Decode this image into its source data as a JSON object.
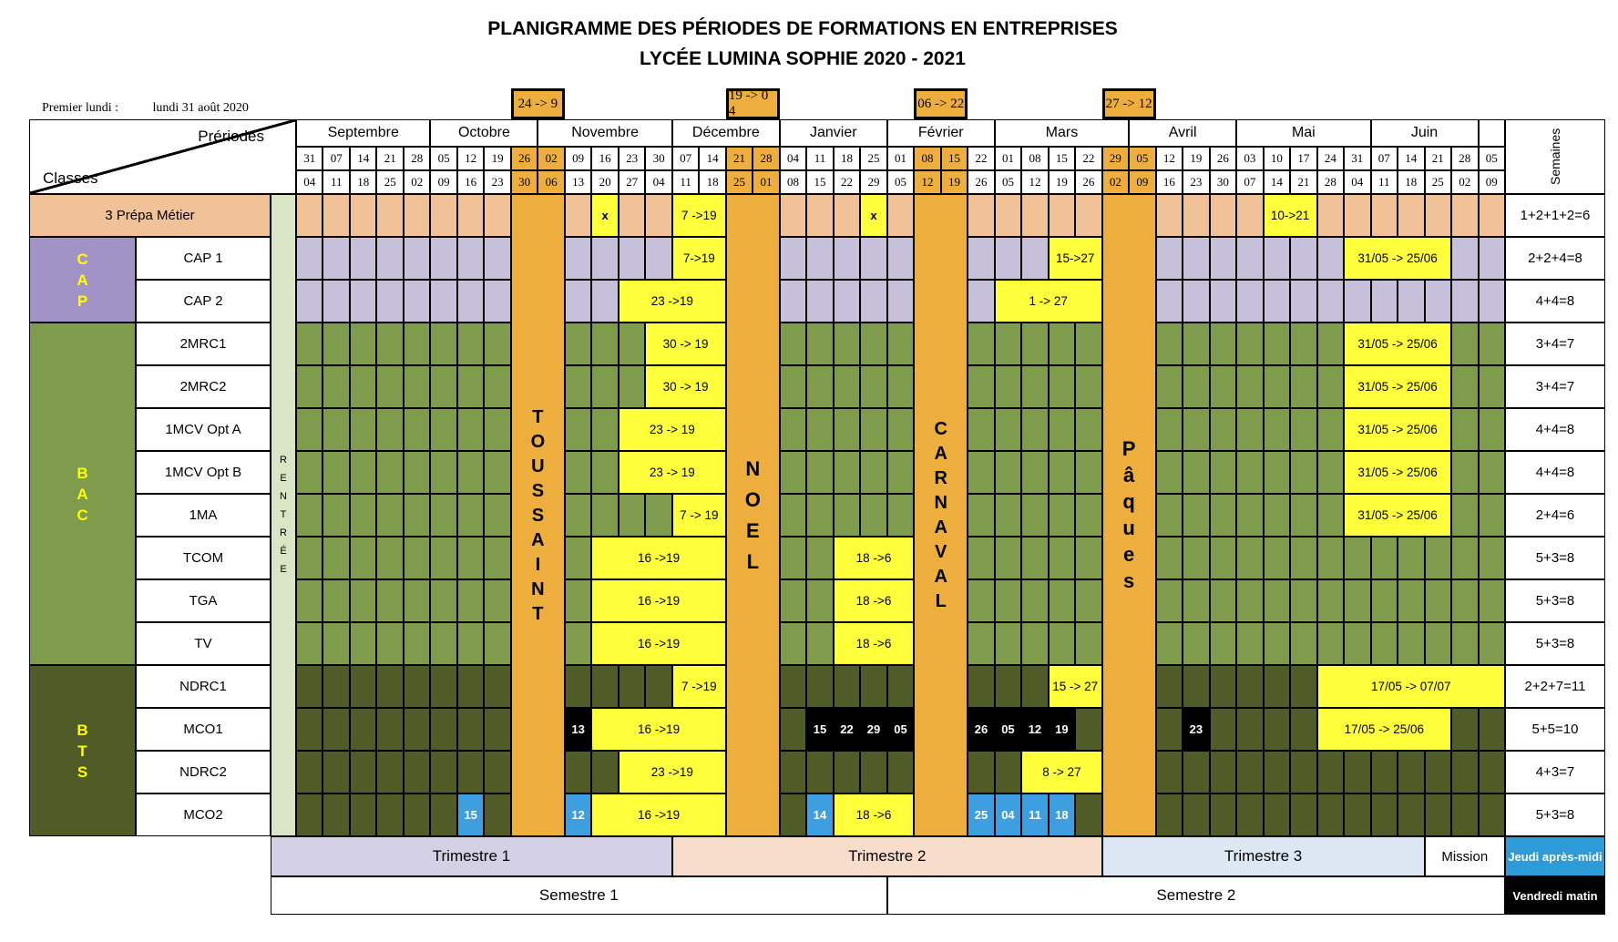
{
  "title_line1": "PLANIGRAMME DES PÉRIODES DE FORMATIONS EN ENTREPRISES",
  "title_line2": "LYCÉE LUMINA SOPHIE 2020 - 2021",
  "premier_lundi_label": "Premier lundi :",
  "premier_lundi_value": "lundi 31 août 2020",
  "corner": {
    "top": "Prériodes",
    "bottom": "Classes"
  },
  "semaines_header": "Semaines",
  "rentree_letters": [
    "R",
    "E",
    "N",
    "T",
    "R",
    "É",
    "E"
  ],
  "colors": {
    "orange": "#EEAE3E",
    "salmon": "#F1C298",
    "cap_cell": "#C6C0DB",
    "cap_group": "#A193C6",
    "bac": "#7E9C4B",
    "bts": "#505C28",
    "rentree": "#D9E5C5",
    "yellow": "#FFFF3C",
    "thursday_blue": "#3E9FE0",
    "legend_blue": "#2D9BD7",
    "trimestre1": "#D4D0E5",
    "trimestre2": "#F8DECA",
    "trimestre3": "#DCE7F3",
    "group_letter": "#FFFF00"
  },
  "months": [
    {
      "name": "Septembre",
      "span": 5
    },
    {
      "name": "Octobre",
      "span": 4
    },
    {
      "name": "Novembre",
      "span": 5
    },
    {
      "name": "Décembre",
      "span": 4
    },
    {
      "name": "Janvier",
      "span": 4
    },
    {
      "name": "Février",
      "span": 4
    },
    {
      "name": "Mars",
      "span": 5
    },
    {
      "name": "Avril",
      "span": 4
    },
    {
      "name": "Mai",
      "span": 5
    },
    {
      "name": "Juin",
      "span": 4
    },
    {
      "name": "",
      "span": 1
    }
  ],
  "weeks": [
    {
      "t": "31",
      "b": "04"
    },
    {
      "t": "07",
      "b": "11"
    },
    {
      "t": "14",
      "b": "18"
    },
    {
      "t": "21",
      "b": "25"
    },
    {
      "t": "28",
      "b": "02"
    },
    {
      "t": "05",
      "b": "09"
    },
    {
      "t": "12",
      "b": "16"
    },
    {
      "t": "19",
      "b": "23"
    },
    {
      "t": "26",
      "b": "30",
      "vac": 1
    },
    {
      "t": "02",
      "b": "06",
      "vac": 1
    },
    {
      "t": "09",
      "b": "13"
    },
    {
      "t": "16",
      "b": "20"
    },
    {
      "t": "23",
      "b": "27"
    },
    {
      "t": "30",
      "b": "04"
    },
    {
      "t": "07",
      "b": "11"
    },
    {
      "t": "14",
      "b": "18"
    },
    {
      "t": "21",
      "b": "25",
      "vac": 1
    },
    {
      "t": "28",
      "b": "01",
      "vac": 1
    },
    {
      "t": "04",
      "b": "08"
    },
    {
      "t": "11",
      "b": "15"
    },
    {
      "t": "18",
      "b": "22"
    },
    {
      "t": "25",
      "b": "29"
    },
    {
      "t": "01",
      "b": "05"
    },
    {
      "t": "08",
      "b": "12",
      "vac": 1
    },
    {
      "t": "15",
      "b": "19",
      "vac": 1
    },
    {
      "t": "22",
      "b": "26"
    },
    {
      "t": "01",
      "b": "05"
    },
    {
      "t": "08",
      "b": "12"
    },
    {
      "t": "15",
      "b": "19"
    },
    {
      "t": "22",
      "b": "26"
    },
    {
      "t": "29",
      "b": "02",
      "vac": 1
    },
    {
      "t": "05",
      "b": "09",
      "vac": 1
    },
    {
      "t": "12",
      "b": "16"
    },
    {
      "t": "19",
      "b": "23"
    },
    {
      "t": "26",
      "b": "30"
    },
    {
      "t": "03",
      "b": "07"
    },
    {
      "t": "10",
      "b": "14"
    },
    {
      "t": "17",
      "b": "21"
    },
    {
      "t": "24",
      "b": "28"
    },
    {
      "t": "31",
      "b": "04"
    },
    {
      "t": "07",
      "b": "11"
    },
    {
      "t": "14",
      "b": "18"
    },
    {
      "t": "21",
      "b": "25"
    },
    {
      "t": "28",
      "b": "02"
    },
    {
      "t": "05",
      "b": "09"
    }
  ],
  "vacations": [
    {
      "id": "toussaint",
      "badge": "24 -> 9",
      "letters": [
        "T",
        "O",
        "U",
        "S",
        "S",
        "A",
        "I",
        "N",
        "T"
      ],
      "s": 8,
      "n": 2,
      "fs": 20,
      "gap": 7
    },
    {
      "id": "noel",
      "badge": "19 -> 0 4",
      "letters": [
        "N",
        "O",
        "E",
        "L"
      ],
      "s": 16,
      "n": 2,
      "fs": 22,
      "gap": 12
    },
    {
      "id": "carnaval",
      "badge": "06 -> 22",
      "letters": [
        "C",
        "A",
        "R",
        "N",
        "A",
        "V",
        "A",
        "L"
      ],
      "s": 23,
      "n": 2,
      "fs": 20,
      "gap": 7
    },
    {
      "id": "paques",
      "badge": "27 -> 12",
      "letters": [
        "P",
        "â",
        "q",
        "u",
        "e",
        "s"
      ],
      "s": 30,
      "n": 2,
      "fs": 22,
      "gap": 7
    }
  ],
  "groups": [
    {
      "id": "cap",
      "letters": [
        "C",
        "A",
        "P"
      ],
      "row": 1,
      "n": 2
    },
    {
      "id": "bac",
      "letters": [
        "B",
        "A",
        "C"
      ],
      "row": 3,
      "n": 8
    },
    {
      "id": "bts",
      "letters": [
        "B",
        "T",
        "S"
      ],
      "row": 11,
      "n": 4
    }
  ],
  "rows": [
    {
      "name": "3 Prépa Métier",
      "type": "prepa",
      "semaines": "1+2+1+2=6",
      "blocks": [
        {
          "k": "x",
          "label": "x",
          "s": 11
        },
        {
          "k": "r",
          "label": "7 ->19",
          "s": 14,
          "n": 2
        },
        {
          "k": "x",
          "label": "x",
          "s": 21
        },
        {
          "k": "r",
          "label": "10->21",
          "s": 36,
          "n": 2
        }
      ]
    },
    {
      "name": "CAP 1",
      "type": "cap",
      "semaines": "2+2+4=8",
      "blocks": [
        {
          "k": "r",
          "label": "7->19",
          "s": 14,
          "n": 2
        },
        {
          "k": "r",
          "label": "15->27",
          "s": 28,
          "n": 2
        },
        {
          "k": "r",
          "label": "31/05 -> 25/06",
          "s": 39,
          "n": 4
        }
      ]
    },
    {
      "name": "CAP 2",
      "type": "cap",
      "semaines": "4+4=8",
      "blocks": [
        {
          "k": "r",
          "label": "23 ->19",
          "s": 12,
          "n": 4
        },
        {
          "k": "r",
          "label": "1 -> 27",
          "s": 26,
          "n": 4
        }
      ]
    },
    {
      "name": "2MRC1",
      "type": "bac",
      "semaines": "3+4=7",
      "blocks": [
        {
          "k": "r",
          "label": "30 -> 19",
          "s": 13,
          "n": 3
        },
        {
          "k": "r",
          "label": "31/05 -> 25/06",
          "s": 39,
          "n": 4
        }
      ]
    },
    {
      "name": "2MRC2",
      "type": "bac",
      "semaines": "3+4=7",
      "blocks": [
        {
          "k": "r",
          "label": "30 -> 19",
          "s": 13,
          "n": 3
        },
        {
          "k": "r",
          "label": "31/05 -> 25/06",
          "s": 39,
          "n": 4
        }
      ]
    },
    {
      "name": "1MCV Opt A",
      "type": "bac",
      "semaines": "4+4=8",
      "blocks": [
        {
          "k": "r",
          "label": "23 -> 19",
          "s": 12,
          "n": 4
        },
        {
          "k": "r",
          "label": "31/05 -> 25/06",
          "s": 39,
          "n": 4
        }
      ]
    },
    {
      "name": "1MCV Opt B",
      "type": "bac",
      "semaines": "4+4=8",
      "blocks": [
        {
          "k": "r",
          "label": "23 -> 19",
          "s": 12,
          "n": 4
        },
        {
          "k": "r",
          "label": "31/05 -> 25/06",
          "s": 39,
          "n": 4
        }
      ]
    },
    {
      "name": "1MA",
      "type": "bac",
      "semaines": "2+4=6",
      "blocks": [
        {
          "k": "r",
          "label": "7 -> 19",
          "s": 14,
          "n": 2
        },
        {
          "k": "r",
          "label": "31/05 -> 25/06",
          "s": 39,
          "n": 4
        }
      ]
    },
    {
      "name": "TCOM",
      "type": "bac",
      "semaines": "5+3=8",
      "blocks": [
        {
          "k": "r",
          "label": "16 ->19",
          "s": 11,
          "n": 5
        },
        {
          "k": "r",
          "label": "18 ->6",
          "s": 20,
          "n": 3
        }
      ]
    },
    {
      "name": "TGA",
      "type": "bac",
      "semaines": "5+3=8",
      "blocks": [
        {
          "k": "r",
          "label": "16 ->19",
          "s": 11,
          "n": 5
        },
        {
          "k": "r",
          "label": "18 ->6",
          "s": 20,
          "n": 3
        }
      ]
    },
    {
      "name": "TV",
      "type": "bac",
      "semaines": "5+3=8",
      "blocks": [
        {
          "k": "r",
          "label": "16 ->19",
          "s": 11,
          "n": 5
        },
        {
          "k": "r",
          "label": "18 ->6",
          "s": 20,
          "n": 3
        }
      ]
    },
    {
      "name": "NDRC1",
      "type": "bts",
      "semaines": "2+2+7=11",
      "blocks": [
        {
          "k": "r",
          "label": "7 ->19",
          "s": 14,
          "n": 2
        },
        {
          "k": "r",
          "label": "15 -> 27",
          "s": 28,
          "n": 2
        },
        {
          "k": "r",
          "label": "17/05 -> 07/07",
          "s": 38,
          "n": 7
        }
      ]
    },
    {
      "name": "MCO1",
      "type": "bts",
      "semaines": "5+5=10",
      "blocks": [
        {
          "k": "f",
          "label": "13",
          "s": 10
        },
        {
          "k": "r",
          "label": "16 ->19",
          "s": 11,
          "n": 5
        },
        {
          "k": "f",
          "label": "15",
          "s": 19
        },
        {
          "k": "f",
          "label": "22",
          "s": 20
        },
        {
          "k": "f",
          "label": "29",
          "s": 21
        },
        {
          "k": "f",
          "label": "05",
          "s": 22
        },
        {
          "k": "f",
          "label": "26",
          "s": 25
        },
        {
          "k": "f",
          "label": "05",
          "s": 26
        },
        {
          "k": "f",
          "label": "12",
          "s": 27
        },
        {
          "k": "f",
          "label": "19",
          "s": 28
        },
        {
          "k": "f",
          "label": "23",
          "s": 33
        },
        {
          "k": "r",
          "label": "17/05 -> 25/06",
          "s": 38,
          "n": 5
        }
      ]
    },
    {
      "name": "NDRC2",
      "type": "bts",
      "semaines": "4+3=7",
      "blocks": [
        {
          "k": "r",
          "label": "23 ->19",
          "s": 12,
          "n": 4
        },
        {
          "k": "r",
          "label": "8 -> 27",
          "s": 27,
          "n": 3
        }
      ]
    },
    {
      "name": "MCO2",
      "type": "bts",
      "semaines": "5+3=8",
      "blocks": [
        {
          "k": "j",
          "label": "15",
          "s": 6
        },
        {
          "k": "j",
          "label": "12",
          "s": 10
        },
        {
          "k": "r",
          "label": "16 ->19",
          "s": 11,
          "n": 5
        },
        {
          "k": "j",
          "label": "14",
          "s": 19
        },
        {
          "k": "r",
          "label": "18 ->6",
          "s": 20,
          "n": 3
        },
        {
          "k": "j",
          "label": "25",
          "s": 25
        },
        {
          "k": "j",
          "label": "04",
          "s": 26
        },
        {
          "k": "j",
          "label": "11",
          "s": 27
        },
        {
          "k": "j",
          "label": "18",
          "s": 28
        }
      ]
    }
  ],
  "trimestres": [
    {
      "label": "Trimestre 1",
      "s": -1,
      "e": 13,
      "colorKey": "trimestre1"
    },
    {
      "label": "Trimestre 2",
      "s": 14,
      "e": 29,
      "colorKey": "trimestre2"
    },
    {
      "label": "Trimestre 3",
      "s": 30,
      "e": 41,
      "colorKey": "trimestre3"
    }
  ],
  "mission_label": "Mission",
  "jeudi_label": "Jeudi après-midi",
  "semestres": [
    {
      "label": "Semestre 1",
      "s": -1,
      "e": 21
    },
    {
      "label": "Semestre 2",
      "s": 22,
      "e": 44
    }
  ],
  "vendredi_label": "Vendredi matin"
}
